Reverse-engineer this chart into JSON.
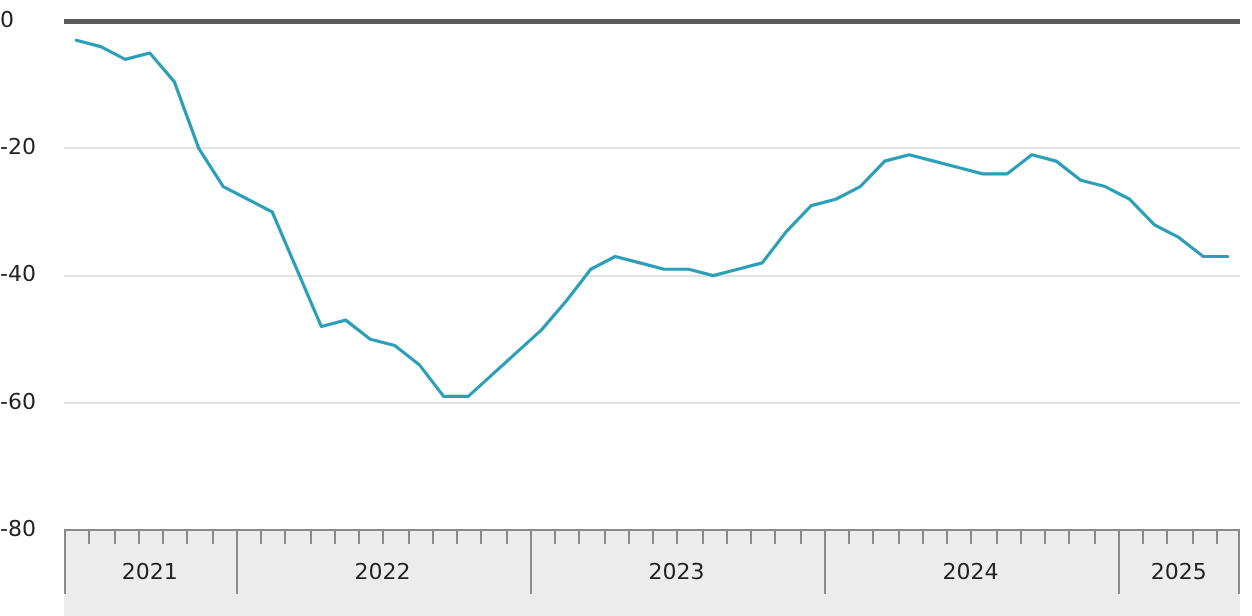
{
  "chart_data": {
    "type": "line",
    "x": [
      "2021-06-16",
      "2021-07-16",
      "2021-08-16",
      "2021-09-16",
      "2021-10-16",
      "2021-11-16",
      "2021-12-16",
      "2022-01-16",
      "2022-02-16",
      "2022-03-16",
      "2022-04-16",
      "2022-05-16",
      "2022-06-16",
      "2022-07-16",
      "2022-08-16",
      "2022-09-16",
      "2022-10-16",
      "2022-11-16",
      "2022-12-16",
      "2023-01-16",
      "2023-02-16",
      "2023-03-16",
      "2023-04-16",
      "2023-05-16",
      "2023-06-16",
      "2023-07-16",
      "2023-08-16",
      "2023-09-16",
      "2023-10-16",
      "2023-11-16",
      "2023-12-16",
      "2024-01-16",
      "2024-02-16",
      "2024-03-16",
      "2024-04-16",
      "2024-05-16",
      "2024-06-16",
      "2024-07-16",
      "2024-08-16",
      "2024-09-16",
      "2024-10-16",
      "2024-11-16",
      "2024-12-16",
      "2025-01-16",
      "2025-02-16",
      "2025-03-16",
      "2025-04-16",
      "2025-05-16"
    ],
    "series": [
      {
        "color": "#2b9fb8",
        "values": [
          -3,
          -4,
          -6,
          -5,
          -9.5,
          -20,
          -26,
          -28,
          -30,
          -39,
          -48,
          -47,
          -50,
          -51,
          -54,
          -59,
          -59,
          -55.5,
          -52,
          -48.5,
          -44,
          -39,
          -37,
          -38,
          -39,
          -39,
          -40,
          -39,
          -38,
          -33,
          -29,
          -28,
          -26,
          -22,
          -21,
          -22,
          -23,
          -24,
          -24,
          -21,
          -22,
          -25,
          -26,
          -28,
          -32,
          -34,
          -37,
          -37
        ]
      }
    ],
    "xlim": [
      "2021-06",
      "2025-06"
    ],
    "xticks": [
      {
        "value": "2021-09-16",
        "label": "2021"
      },
      {
        "value": "2022-07-01",
        "label": "2022"
      },
      {
        "value": "2023-07-01",
        "label": "2023"
      },
      {
        "value": "2024-07-01",
        "label": "2024"
      },
      {
        "value": "2025-03-16",
        "label": "2025"
      }
    ],
    "ylim": [
      -80,
      0
    ],
    "yticks": [
      0,
      -20,
      -40,
      -60,
      -80
    ],
    "grid": "y",
    "legend": false,
    "marker": "none",
    "line_style": "solid"
  }
}
